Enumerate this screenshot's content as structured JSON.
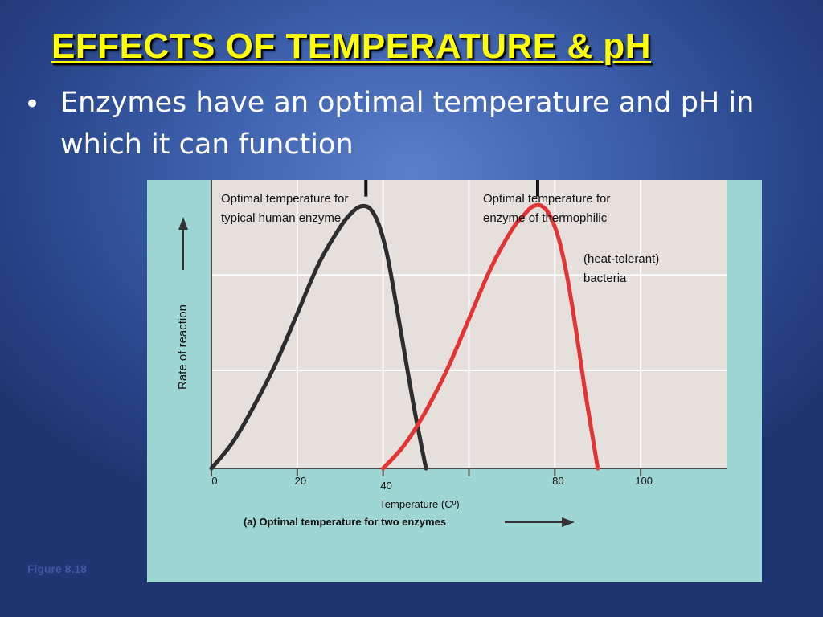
{
  "slide": {
    "title": "EFFECTS OF TEMPERATURE & pH",
    "bullet": "Enzymes have an optimal temperature and pH in which it can function",
    "figure_caption": "Figure 8.18",
    "colors": {
      "title": "#ffff00",
      "background": "#3f62ae",
      "panel": "#9dd6d3",
      "plot": "#e6e0dc",
      "human_curve": "#2d2d2d",
      "thermophile_curve": "#e23434"
    }
  },
  "chart_data": {
    "type": "line",
    "title": "(a) Optimal temperature for two enzymes",
    "xlabel": "Temperature (Cº)",
    "ylabel": "Rate of reaction",
    "xlim": [
      0,
      120
    ],
    "ylim": [
      0,
      1.1
    ],
    "xticks": [
      0,
      20,
      40,
      60,
      80,
      100
    ],
    "xtick_labels": [
      "0",
      "20",
      "40",
      "",
      "80",
      "100"
    ],
    "grid": true,
    "series": [
      {
        "name": "typical human enzyme",
        "color": "#2d2d2d",
        "x": [
          0,
          5,
          10,
          15,
          20,
          25,
          30,
          33,
          35,
          37,
          39,
          41,
          43,
          45,
          47,
          49,
          50
        ],
        "y": [
          0,
          0.1,
          0.24,
          0.4,
          0.59,
          0.78,
          0.92,
          0.98,
          1.0,
          0.99,
          0.93,
          0.81,
          0.63,
          0.44,
          0.25,
          0.08,
          0
        ],
        "peak_x": 36,
        "annotation": [
          "Optimal temperature for",
          "typical human enzyme"
        ]
      },
      {
        "name": "enzyme of thermophilic (heat-tolerant) bacteria",
        "color": "#e23434",
        "x": [
          40,
          45,
          50,
          55,
          60,
          65,
          70,
          73,
          75,
          77,
          79,
          81,
          83,
          85,
          87,
          89,
          90
        ],
        "y": [
          0,
          0.09,
          0.22,
          0.38,
          0.57,
          0.76,
          0.91,
          0.97,
          1.0,
          1.0,
          0.96,
          0.87,
          0.72,
          0.52,
          0.3,
          0.1,
          0
        ],
        "peak_x": 76,
        "annotation": [
          "Optimal temperature for",
          "enzyme of thermophilic"
        ],
        "annotation_extra": [
          "(heat-tolerant)",
          "bacteria"
        ]
      }
    ]
  }
}
